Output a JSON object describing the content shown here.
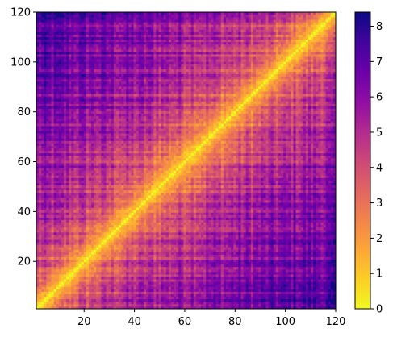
{
  "chart_data": {
    "type": "heatmap",
    "title": "",
    "xlabel": "",
    "ylabel": "",
    "n": 120,
    "xlim": [
      1,
      120
    ],
    "ylim": [
      1,
      120
    ],
    "x_ticks": [
      20,
      40,
      60,
      80,
      100,
      120
    ],
    "y_ticks": [
      20,
      40,
      60,
      80,
      100,
      120
    ],
    "colormap": "plasma_r",
    "colorbar": {
      "min": 0,
      "max": 8.4,
      "ticks": [
        0,
        1,
        2,
        3,
        4,
        5,
        6,
        7,
        8
      ]
    },
    "diagonal_value": 0,
    "distance_profile": {
      "offsets": [
        0,
        1,
        5,
        10,
        20,
        40,
        60,
        80,
        100,
        119
      ],
      "values": [
        0,
        0.9,
        2.2,
        3.2,
        4.2,
        5.2,
        5.8,
        6.3,
        6.8,
        7.2
      ]
    },
    "regions": {
      "top_left_corner_mean": 7.2,
      "bottom_right_corner_mean": 6.9,
      "near_diagonal_mean": 2.0
    }
  }
}
